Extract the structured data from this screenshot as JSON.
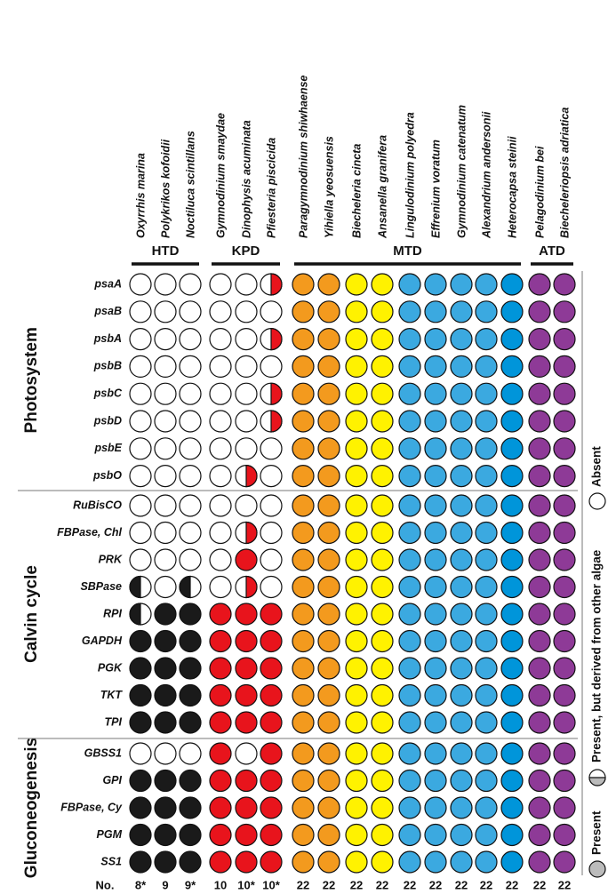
{
  "species": [
    "Oxyrrhis marina",
    "Polykrikos kofoidii",
    "Noctiluca scintillans",
    "Gymnodinium smaydae",
    "Dinophysis acuminata",
    "Pfiesteria piscicida",
    "Paragymnodinium shiwhaense",
    "Yihiella yeosuensis",
    "Biecheleria cincta",
    "Ansanella granifera",
    "Lingulodinium polyedra",
    "Effrenium voratum",
    "Gymnodinium catenatum",
    "Alexandrium andersonii",
    "Heterocapsa steinii",
    "Pelagodinium bei",
    "Biecheleriopsis adriatica"
  ],
  "colors": [
    "#1a1a1a",
    "#1a1a1a",
    "#1a1a1a",
    "#e8141c",
    "#e8141c",
    "#e8141c",
    "#f39a1e",
    "#f39a1e",
    "#fff200",
    "#fff200",
    "#3ba9e0",
    "#3ba9e0",
    "#3ba9e0",
    "#3ba9e0",
    "#0095da",
    "#8e3a97",
    "#8e3a97"
  ],
  "groups": [
    {
      "label": "HTD",
      "span": 3
    },
    {
      "label": "KPD",
      "span": 3
    },
    {
      "label": "MTD",
      "span": 9
    },
    {
      "label": "ATD",
      "span": 2
    }
  ],
  "sections": [
    {
      "label": "Photosystem",
      "rows": [
        {
          "gene": "psaA",
          "states": [
            "a",
            "a",
            "a",
            "a",
            "a",
            "h",
            "p",
            "p",
            "p",
            "p",
            "p",
            "p",
            "p",
            "p",
            "p",
            "p",
            "p"
          ]
        },
        {
          "gene": "psaB",
          "states": [
            "a",
            "a",
            "a",
            "a",
            "a",
            "a",
            "p",
            "p",
            "p",
            "p",
            "p",
            "p",
            "p",
            "p",
            "p",
            "p",
            "p"
          ]
        },
        {
          "gene": "psbA",
          "states": [
            "a",
            "a",
            "a",
            "a",
            "a",
            "h",
            "p",
            "p",
            "p",
            "p",
            "p",
            "p",
            "p",
            "p",
            "p",
            "p",
            "p"
          ]
        },
        {
          "gene": "psbB",
          "states": [
            "a",
            "a",
            "a",
            "a",
            "a",
            "a",
            "p",
            "p",
            "p",
            "p",
            "p",
            "p",
            "p",
            "p",
            "p",
            "p",
            "p"
          ]
        },
        {
          "gene": "psbC",
          "states": [
            "a",
            "a",
            "a",
            "a",
            "a",
            "h",
            "p",
            "p",
            "p",
            "p",
            "p",
            "p",
            "p",
            "p",
            "p",
            "p",
            "p"
          ]
        },
        {
          "gene": "psbD",
          "states": [
            "a",
            "a",
            "a",
            "a",
            "a",
            "h",
            "p",
            "p",
            "p",
            "p",
            "p",
            "p",
            "p",
            "p",
            "p",
            "p",
            "p"
          ]
        },
        {
          "gene": "psbE",
          "states": [
            "a",
            "a",
            "a",
            "a",
            "a",
            "a",
            "p",
            "p",
            "p",
            "p",
            "p",
            "p",
            "p",
            "p",
            "p",
            "p",
            "p"
          ]
        },
        {
          "gene": "psbO",
          "states": [
            "a",
            "a",
            "a",
            "a",
            "h",
            "a",
            "p",
            "p",
            "p",
            "p",
            "p",
            "p",
            "p",
            "p",
            "p",
            "p",
            "p"
          ]
        }
      ]
    },
    {
      "label": "Calvin cycle",
      "rows": [
        {
          "gene": "RuBisCO",
          "states": [
            "a",
            "a",
            "a",
            "a",
            "a",
            "a",
            "p",
            "p",
            "p",
            "p",
            "p",
            "p",
            "p",
            "p",
            "p",
            "p",
            "p"
          ]
        },
        {
          "gene": "FBPase, Chl",
          "states": [
            "a",
            "a",
            "a",
            "a",
            "h",
            "a",
            "p",
            "p",
            "p",
            "p",
            "p",
            "p",
            "p",
            "p",
            "p",
            "p",
            "p"
          ]
        },
        {
          "gene": "PRK",
          "states": [
            "a",
            "a",
            "a",
            "a",
            "p",
            "a",
            "p",
            "p",
            "p",
            "p",
            "p",
            "p",
            "p",
            "p",
            "p",
            "p",
            "p"
          ]
        },
        {
          "gene": "SBPase",
          "states": [
            "h",
            "a",
            "h",
            "a",
            "h",
            "a",
            "p",
            "p",
            "p",
            "p",
            "p",
            "p",
            "p",
            "p",
            "p",
            "p",
            "p"
          ]
        },
        {
          "gene": "RPI",
          "states": [
            "h",
            "p",
            "p",
            "p",
            "p",
            "p",
            "p",
            "p",
            "p",
            "p",
            "p",
            "p",
            "p",
            "p",
            "p",
            "p",
            "p"
          ]
        },
        {
          "gene": "GAPDH",
          "states": [
            "p",
            "p",
            "p",
            "p",
            "p",
            "p",
            "p",
            "p",
            "p",
            "p",
            "p",
            "p",
            "p",
            "p",
            "p",
            "p",
            "p"
          ]
        },
        {
          "gene": "PGK",
          "states": [
            "p",
            "p",
            "p",
            "p",
            "p",
            "p",
            "p",
            "p",
            "p",
            "p",
            "p",
            "p",
            "p",
            "p",
            "p",
            "p",
            "p"
          ]
        },
        {
          "gene": "TKT",
          "states": [
            "p",
            "p",
            "p",
            "p",
            "p",
            "p",
            "p",
            "p",
            "p",
            "p",
            "p",
            "p",
            "p",
            "p",
            "p",
            "p",
            "p"
          ]
        },
        {
          "gene": "TPI",
          "states": [
            "p",
            "p",
            "p",
            "p",
            "p",
            "p",
            "p",
            "p",
            "p",
            "p",
            "p",
            "p",
            "p",
            "p",
            "p",
            "p",
            "p"
          ]
        }
      ]
    },
    {
      "label": "Gluconeogenesis",
      "rows": [
        {
          "gene": "GBSS1",
          "states": [
            "a",
            "a",
            "a",
            "p",
            "a",
            "p",
            "p",
            "p",
            "p",
            "p",
            "p",
            "p",
            "p",
            "p",
            "p",
            "p",
            "p"
          ]
        },
        {
          "gene": "GPI",
          "states": [
            "p",
            "p",
            "p",
            "p",
            "p",
            "p",
            "p",
            "p",
            "p",
            "p",
            "p",
            "p",
            "p",
            "p",
            "p",
            "p",
            "p"
          ]
        },
        {
          "gene": "FBPase, Cy",
          "states": [
            "p",
            "p",
            "p",
            "p",
            "p",
            "p",
            "p",
            "p",
            "p",
            "p",
            "p",
            "p",
            "p",
            "p",
            "p",
            "p",
            "p"
          ]
        },
        {
          "gene": "PGM",
          "states": [
            "p",
            "p",
            "p",
            "p",
            "p",
            "p",
            "p",
            "p",
            "p",
            "p",
            "p",
            "p",
            "p",
            "p",
            "p",
            "p",
            "p"
          ]
        },
        {
          "gene": "SS1",
          "states": [
            "p",
            "p",
            "p",
            "p",
            "p",
            "p",
            "p",
            "p",
            "p",
            "p",
            "p",
            "p",
            "p",
            "p",
            "p",
            "p",
            "p"
          ]
        }
      ]
    }
  ],
  "counts_label": "No.",
  "counts": [
    "8*",
    "9",
    "9*",
    "10",
    "10*",
    "10*",
    "22",
    "22",
    "22",
    "22",
    "22",
    "22",
    "22",
    "22",
    "22",
    "22",
    "22"
  ],
  "legend": {
    "absent": "Absent",
    "partial": "Present, but derived from other algae",
    "present": "Present"
  }
}
